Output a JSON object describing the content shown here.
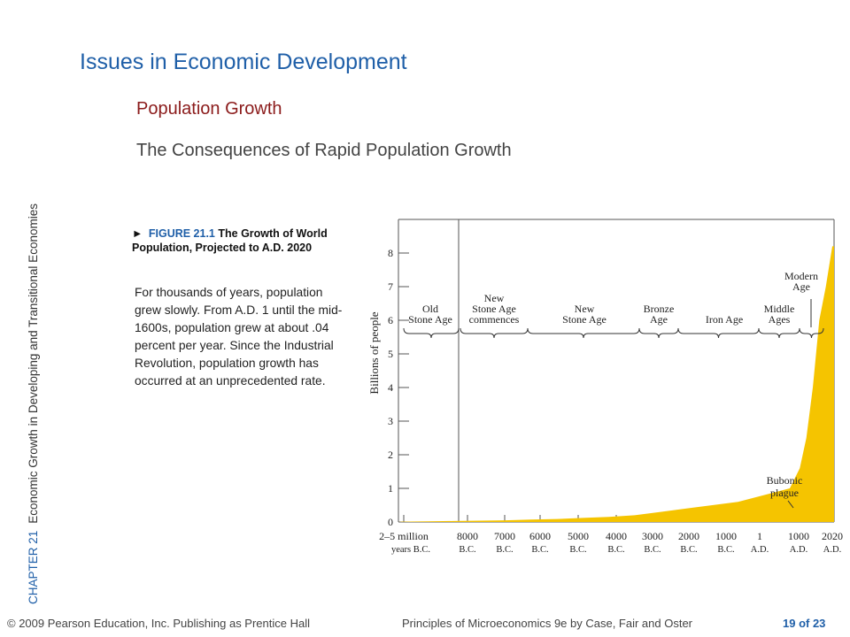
{
  "slide": {
    "title": "Issues in Economic Development",
    "subtitle1": "Population Growth",
    "subtitle2": "The Consequences of Rapid Population Growth"
  },
  "sidebar": {
    "chapter": "CHAPTER 21",
    "chapter_title": "Economic Growth in Developing and Transitional Economies"
  },
  "figure": {
    "marker": "►",
    "number": "FIGURE 21.1",
    "title": "The Growth of World Population, Projected to A.D. 2020",
    "description": "For thousands of years, population grew slowly. From A.D. 1 until the mid-1600s, population grew at about .04 percent per year. Since the Industrial Revolution, population growth has occurred at an unprecedented rate."
  },
  "footer": {
    "copyright": "© 2009 Pearson Education, Inc. Publishing as Prentice Hall",
    "book": "Principles of Microeconomics 9e by Case, Fair and Oster",
    "page": "19 of 23"
  },
  "colors": {
    "title": "#1f5fa8",
    "subtitle": "#8b1b1b",
    "fill": "#f5c400"
  },
  "chart_data": {
    "type": "area",
    "ylabel": "Billions of people",
    "ylim": [
      0,
      9
    ],
    "yticks": [
      "0",
      "1",
      "2",
      "3",
      "4",
      "5",
      "6",
      "7",
      "8"
    ],
    "xticks": [
      {
        "top": "2–5 million",
        "bottom": "years B.C."
      },
      {
        "top": "8000",
        "bottom": "B.C."
      },
      {
        "top": "7000",
        "bottom": "B.C."
      },
      {
        "top": "6000",
        "bottom": "B.C."
      },
      {
        "top": "5000",
        "bottom": "B.C."
      },
      {
        "top": "4000",
        "bottom": "B.C."
      },
      {
        "top": "3000",
        "bottom": "B.C."
      },
      {
        "top": "2000",
        "bottom": "B.C."
      },
      {
        "top": "1000",
        "bottom": "B.C."
      },
      {
        "top": "1",
        "bottom": "A.D."
      },
      {
        "top": "1000",
        "bottom": "A.D."
      },
      {
        "top": "2020",
        "bottom": "A.D."
      }
    ],
    "eras": [
      {
        "lines": [
          "Old",
          "Stone Age"
        ]
      },
      {
        "lines": [
          "New",
          "Stone Age",
          "commences"
        ]
      },
      {
        "lines": [
          "New",
          "Stone Age"
        ]
      },
      {
        "lines": [
          "Bronze",
          "Age"
        ]
      },
      {
        "lines": [
          "Iron Age"
        ]
      },
      {
        "lines": [
          "Middle",
          "Ages"
        ]
      },
      {
        "lines": [
          "Modern",
          "Age"
        ]
      }
    ],
    "annotation": "Bubonic plague",
    "series": [
      {
        "values": [
          0.01,
          0.02,
          0.03,
          0.04,
          0.05,
          0.07,
          0.09,
          0.12,
          0.15,
          0.2,
          0.3,
          0.4,
          0.5,
          0.6,
          0.8,
          1.0,
          1.6,
          2.5,
          4.0,
          6.0,
          7.0,
          8.2
        ]
      }
    ]
  }
}
